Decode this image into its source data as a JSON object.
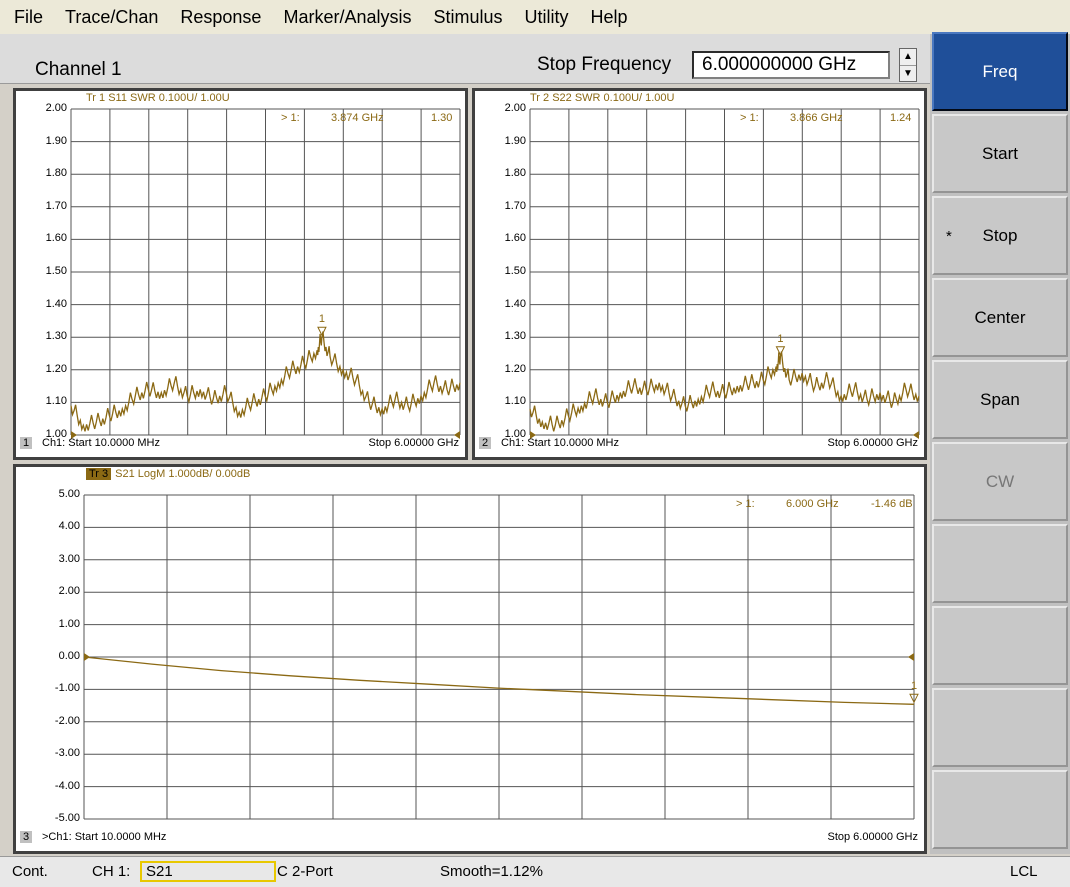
{
  "menu": [
    "File",
    "Trace/Chan",
    "Response",
    "Marker/Analysis",
    "Stimulus",
    "Utility",
    "Help"
  ],
  "toolbar": {
    "channel_label": "Channel 1",
    "param_label": "Stop Frequency",
    "param_value": "6.000000000 GHz"
  },
  "softkeys": [
    {
      "label": "Freq",
      "state": "active"
    },
    {
      "label": "Start",
      "state": "normal"
    },
    {
      "label": "Stop",
      "state": "selected",
      "marker": "*"
    },
    {
      "label": "Center",
      "state": "normal"
    },
    {
      "label": "Span",
      "state": "normal"
    },
    {
      "label": "CW",
      "state": "disabled"
    },
    {
      "label": "",
      "state": "normal"
    },
    {
      "label": "",
      "state": "normal"
    },
    {
      "label": "",
      "state": "normal"
    },
    {
      "label": "",
      "state": "normal"
    }
  ],
  "status": {
    "mode": "Cont.",
    "channel": "CH 1:",
    "param": "S21",
    "cal": "C 2-Port",
    "smooth": "Smooth=1.12%",
    "control": "LCL"
  },
  "trace_color": "#8b6914",
  "chart_data": [
    {
      "type": "line",
      "window": "1",
      "title": "Tr 1  S11 SWR 0.100U/  1.00U",
      "y_ticks": [
        "2.00",
        "1.90",
        "1.80",
        "1.70",
        "1.60",
        "1.50",
        "1.40",
        "1.30",
        "1.20",
        "1.10",
        "1.00"
      ],
      "ylim": [
        1.0,
        2.0
      ],
      "xlim_ghz": [
        0.01,
        6.0
      ],
      "marker": {
        "label": "> 1:",
        "freq": "3.874 GHz",
        "value": "1.30",
        "x": 3.874,
        "y": 1.3
      },
      "start": "Ch1: Start  10.0000 MHz",
      "stop": "Stop  6.00000 GHz",
      "x": [
        0.01,
        0.2,
        0.4,
        0.6,
        0.8,
        1.0,
        1.2,
        1.4,
        1.6,
        1.8,
        2.0,
        2.2,
        2.4,
        2.6,
        2.8,
        3.0,
        3.2,
        3.4,
        3.6,
        3.8,
        3.874,
        4.0,
        4.2,
        4.4,
        4.6,
        4.8,
        5.0,
        5.2,
        5.4,
        5.6,
        5.8,
        6.0
      ],
      "y": [
        1.09,
        1.03,
        1.04,
        1.06,
        1.08,
        1.12,
        1.14,
        1.13,
        1.16,
        1.12,
        1.14,
        1.11,
        1.13,
        1.07,
        1.1,
        1.12,
        1.16,
        1.2,
        1.22,
        1.26,
        1.3,
        1.24,
        1.2,
        1.17,
        1.1,
        1.08,
        1.11,
        1.09,
        1.12,
        1.16,
        1.14,
        1.16
      ]
    },
    {
      "type": "line",
      "window": "2",
      "title": "Tr 2  S22 SWR 0.100U/  1.00U",
      "y_ticks": [
        "2.00",
        "1.90",
        "1.80",
        "1.70",
        "1.60",
        "1.50",
        "1.40",
        "1.30",
        "1.20",
        "1.10",
        "1.00"
      ],
      "ylim": [
        1.0,
        2.0
      ],
      "xlim_ghz": [
        0.01,
        6.0
      ],
      "marker": {
        "label": "> 1:",
        "freq": "3.866 GHz",
        "value": "1.24",
        "x": 3.866,
        "y": 1.24
      },
      "start": "Ch1: Start  10.0000 MHz",
      "stop": "Stop  6.00000 GHz",
      "x": [
        0.01,
        0.2,
        0.4,
        0.6,
        0.8,
        1.0,
        1.2,
        1.4,
        1.6,
        1.8,
        2.0,
        2.2,
        2.4,
        2.6,
        2.8,
        3.0,
        3.2,
        3.4,
        3.6,
        3.8,
        3.866,
        4.0,
        4.2,
        4.4,
        4.6,
        4.8,
        5.0,
        5.2,
        5.4,
        5.6,
        5.8,
        6.0
      ],
      "y": [
        1.08,
        1.04,
        1.03,
        1.06,
        1.09,
        1.12,
        1.1,
        1.13,
        1.15,
        1.14,
        1.16,
        1.12,
        1.09,
        1.11,
        1.14,
        1.13,
        1.15,
        1.16,
        1.17,
        1.21,
        1.24,
        1.17,
        1.19,
        1.15,
        1.17,
        1.12,
        1.14,
        1.11,
        1.13,
        1.1,
        1.14,
        1.12
      ]
    },
    {
      "type": "line",
      "window": "3",
      "title": "S21 LogM 1.000dB/  0.00dB",
      "trace_badge": "Tr 3",
      "y_ticks": [
        "5.00",
        "4.00",
        "3.00",
        "2.00",
        "1.00",
        "0.00",
        "-1.00",
        "-2.00",
        "-3.00",
        "-4.00",
        "-5.00"
      ],
      "ylim": [
        -5.0,
        5.0
      ],
      "xlim_ghz": [
        0.01,
        6.0
      ],
      "marker": {
        "label": "> 1:",
        "freq": "6.000 GHz",
        "value": "-1.46 dB",
        "x": 6.0,
        "y": -1.46
      },
      "start": ">Ch1: Start  10.0000 MHz",
      "stop": "Stop  6.00000 GHz",
      "x": [
        0.01,
        0.5,
        1.0,
        1.5,
        2.0,
        2.5,
        3.0,
        3.5,
        4.0,
        4.5,
        5.0,
        5.5,
        6.0
      ],
      "y": [
        0.0,
        -0.22,
        -0.42,
        -0.58,
        -0.72,
        -0.84,
        -0.96,
        -1.06,
        -1.16,
        -1.24,
        -1.32,
        -1.4,
        -1.46
      ]
    }
  ]
}
